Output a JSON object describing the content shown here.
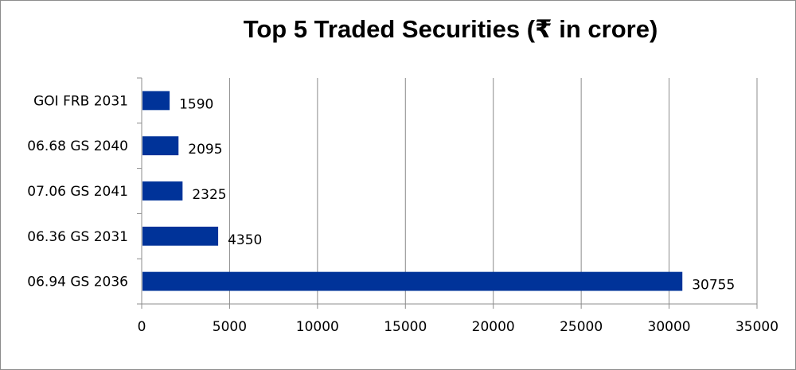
{
  "chart_data": {
    "type": "bar",
    "orientation": "horizontal",
    "title": "Top 5 Traded Securities (₹ in crore)",
    "xlabel": "",
    "ylabel": "",
    "categories": [
      "GOI FRB 2031",
      "06.68 GS 2040",
      "07.06 GS 2041",
      "06.36 GS 2031",
      "06.94 GS 2036"
    ],
    "values": [
      1590,
      2095,
      2325,
      4350,
      30755
    ],
    "data_labels": [
      "1590",
      "2095",
      "2325",
      "4350",
      "30755"
    ],
    "xlim": [
      0,
      35000
    ],
    "x_ticks": [
      0,
      5000,
      10000,
      15000,
      20000,
      25000,
      30000,
      35000
    ],
    "x_tick_labels": [
      "0",
      "5000",
      "10000",
      "15000",
      "20000",
      "25000",
      "30000",
      "35000"
    ],
    "grid": "vertical",
    "legend": "none",
    "bar_color": "#003399"
  }
}
